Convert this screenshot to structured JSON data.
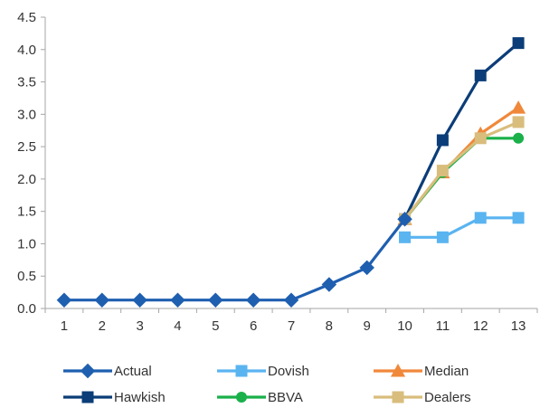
{
  "chart_data": {
    "type": "line",
    "x": [
      1,
      2,
      3,
      4,
      5,
      6,
      7,
      8,
      9,
      10,
      11,
      12,
      13
    ],
    "xlim": [
      0.5,
      13.5
    ],
    "ylim": [
      0,
      4.5
    ],
    "yticks": [
      "0.0",
      "0.5",
      "1.0",
      "1.5",
      "2.0",
      "2.5",
      "3.0",
      "3.5",
      "4.0",
      "4.5"
    ],
    "xticks": [
      "1",
      "2",
      "3",
      "4",
      "5",
      "6",
      "7",
      "8",
      "9",
      "10",
      "11",
      "12",
      "13"
    ],
    "grid": false,
    "legend_position": "bottom",
    "series": [
      {
        "name": "Actual",
        "color": "#1f5fb0",
        "marker": "diamond",
        "x": [
          1,
          2,
          3,
          4,
          5,
          6,
          7,
          8,
          9,
          10
        ],
        "values": [
          0.13,
          0.13,
          0.13,
          0.13,
          0.13,
          0.13,
          0.13,
          0.37,
          0.63,
          1.38
        ]
      },
      {
        "name": "Dovish",
        "color": "#5ab4f0",
        "marker": "square",
        "x": [
          10,
          11,
          12,
          13
        ],
        "values": [
          1.1,
          1.1,
          1.4,
          1.4
        ]
      },
      {
        "name": "Median",
        "color": "#f0883a",
        "marker": "triangle",
        "x": [
          10,
          11,
          12,
          13
        ],
        "values": [
          1.38,
          2.1,
          2.7,
          3.1
        ]
      },
      {
        "name": "Hawkish",
        "color": "#0b3d78",
        "marker": "square",
        "x": [
          10,
          11,
          12,
          13
        ],
        "values": [
          1.38,
          2.6,
          3.6,
          4.1
        ]
      },
      {
        "name": "BBVA",
        "color": "#1ab04a",
        "marker": "circle",
        "x": [
          10,
          11,
          12,
          13
        ],
        "values": [
          1.38,
          2.1,
          2.63,
          2.63
        ]
      },
      {
        "name": "Dealers",
        "color": "#d9bd7c",
        "marker": "square",
        "x": [
          10,
          11,
          12,
          13
        ],
        "values": [
          1.38,
          2.13,
          2.63,
          2.88
        ]
      }
    ]
  }
}
